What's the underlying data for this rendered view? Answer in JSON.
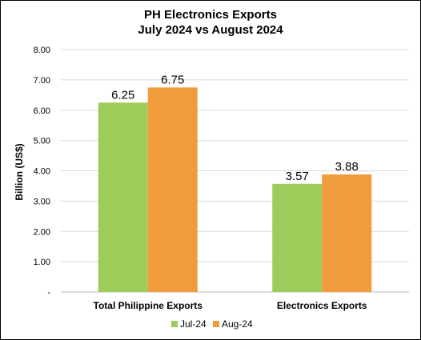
{
  "chart_data": {
    "type": "bar",
    "title_line1": "PH Electronics Exports",
    "title_line2": "July 2024 vs August 2024",
    "ylabel": "Billion (US$)",
    "xlabel": "",
    "ylim": [
      0,
      8
    ],
    "yticks": [
      "-",
      "1.00",
      "2.00",
      "3.00",
      "4.00",
      "5.00",
      "6.00",
      "7.00",
      "8.00"
    ],
    "categories": [
      "Total Philippine Exports",
      "Electronics Exports"
    ],
    "series": [
      {
        "name": "Jul-24",
        "color": "#9ccd5a",
        "values": [
          6.25,
          3.57
        ],
        "labels": [
          "6.25",
          "3.57"
        ]
      },
      {
        "name": "Aug-24",
        "color": "#f09b3c",
        "values": [
          6.75,
          3.88
        ],
        "labels": [
          "6.75",
          "3.88"
        ]
      }
    ],
    "grid": true,
    "legend_position": "bottom"
  }
}
